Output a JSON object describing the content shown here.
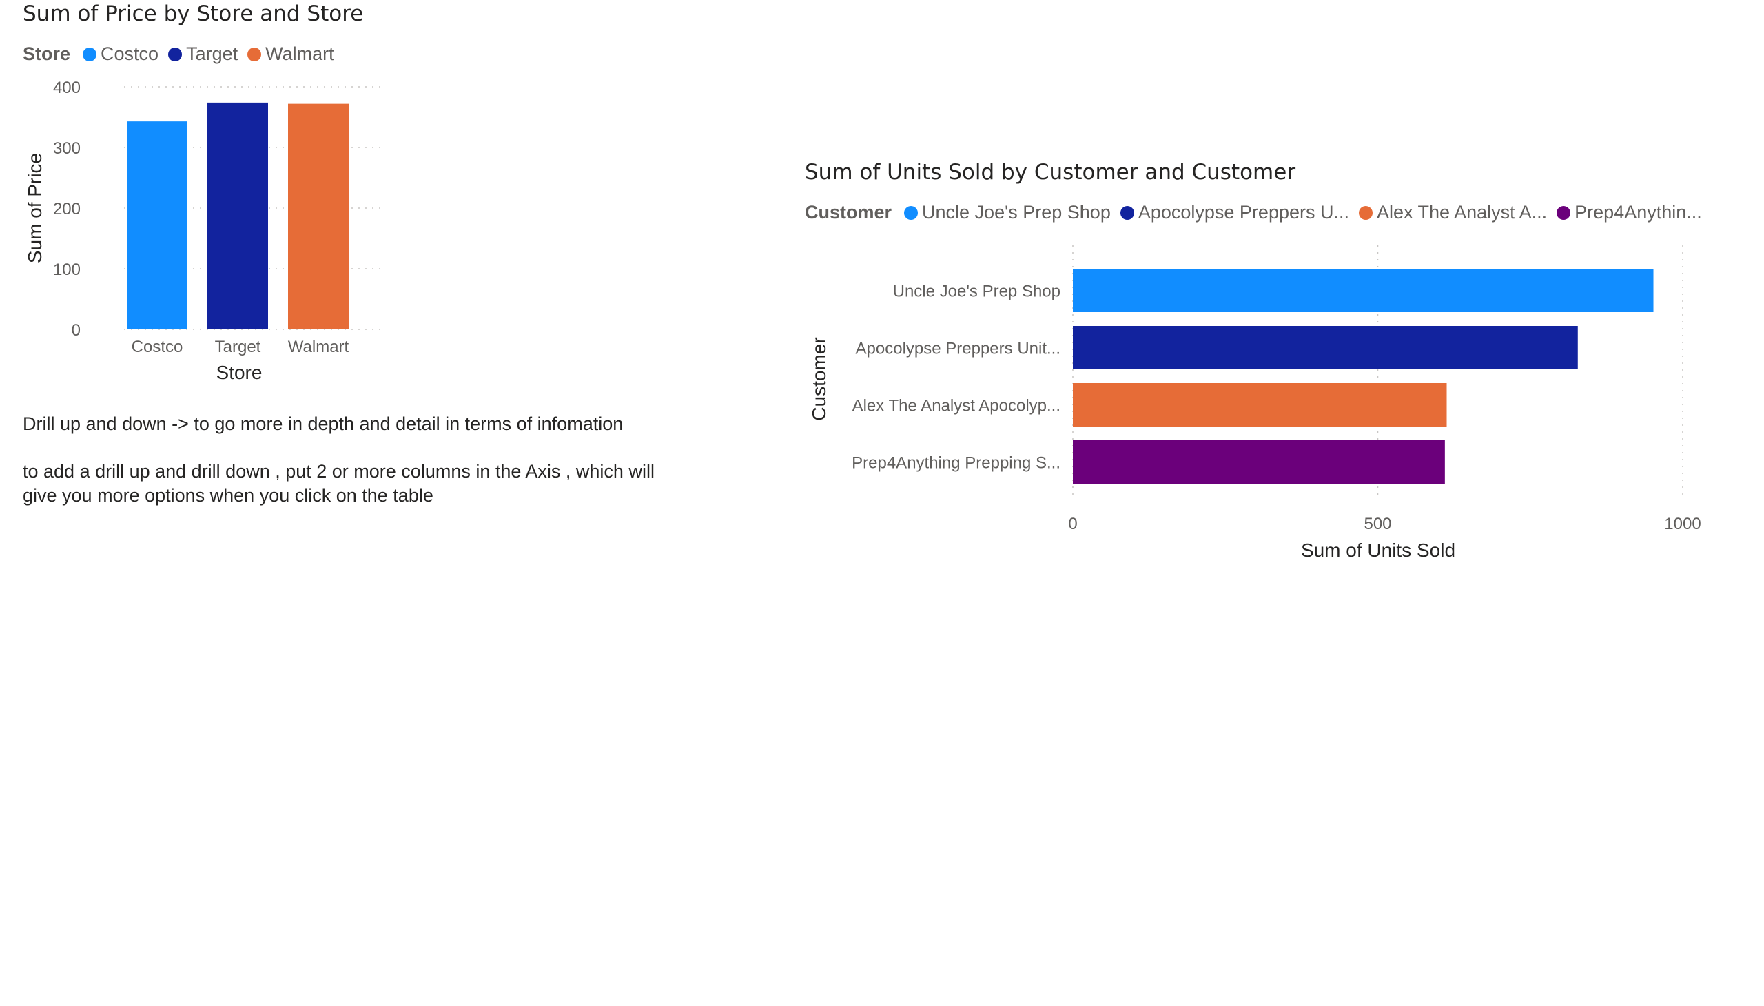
{
  "colors": {
    "blue": "#118dff",
    "navy": "#12239e",
    "orange": "#e66c37",
    "purple": "#6b007b",
    "grid": "#c8c6c4",
    "axis_text": "#605e5c"
  },
  "notes": {
    "line1": "Drill up and down -> to go more in depth and detail in terms of infomation",
    "line2": "to add a drill up and drill down , put 2 or more columns in the Axis , which will give you more options when you click on the table"
  },
  "chart_data": [
    {
      "type": "bar",
      "orientation": "vertical",
      "title": "Sum of Price by Store and Store",
      "legend_title": "Store",
      "legend_position": "top-left",
      "legend": [
        {
          "label": "Costco",
          "color": "#118dff"
        },
        {
          "label": "Target",
          "color": "#12239e"
        },
        {
          "label": "Walmart",
          "color": "#e66c37"
        }
      ],
      "categories": [
        "Costco",
        "Target",
        "Walmart"
      ],
      "values": [
        343,
        374,
        372
      ],
      "colors": [
        "#118dff",
        "#12239e",
        "#e66c37"
      ],
      "xlabel": "Store",
      "ylabel": "Sum of Price",
      "ylim": [
        0,
        400
      ],
      "yticks": [
        "0",
        "100",
        "200",
        "300",
        "400"
      ],
      "grid": true
    },
    {
      "type": "bar",
      "orientation": "horizontal",
      "title": "Sum of Units Sold by Customer and Customer",
      "legend_title": "Customer",
      "legend_position": "top-left",
      "legend": [
        {
          "label": "Uncle Joe's Prep Shop",
          "color": "#118dff"
        },
        {
          "label": "Apocolypse Preppers U...",
          "color": "#12239e"
        },
        {
          "label": "Alex The Analyst A...",
          "color": "#e66c37"
        },
        {
          "label": "Prep4Anythin...",
          "color": "#6b007b"
        }
      ],
      "categories": [
        "Uncle Joe's Prep Shop",
        "Apocolypse Preppers Unit...",
        "Alex The Analyst Apocolyp...",
        "Prep4Anything Prepping S..."
      ],
      "values": [
        952,
        828,
        613,
        610
      ],
      "colors": [
        "#118dff",
        "#12239e",
        "#e66c37",
        "#6b007b"
      ],
      "xlabel": "Sum of Units Sold",
      "ylabel": "Customer",
      "xlim": [
        0,
        1000
      ],
      "xticks": [
        "0",
        "500",
        "1000"
      ],
      "grid": true
    }
  ]
}
